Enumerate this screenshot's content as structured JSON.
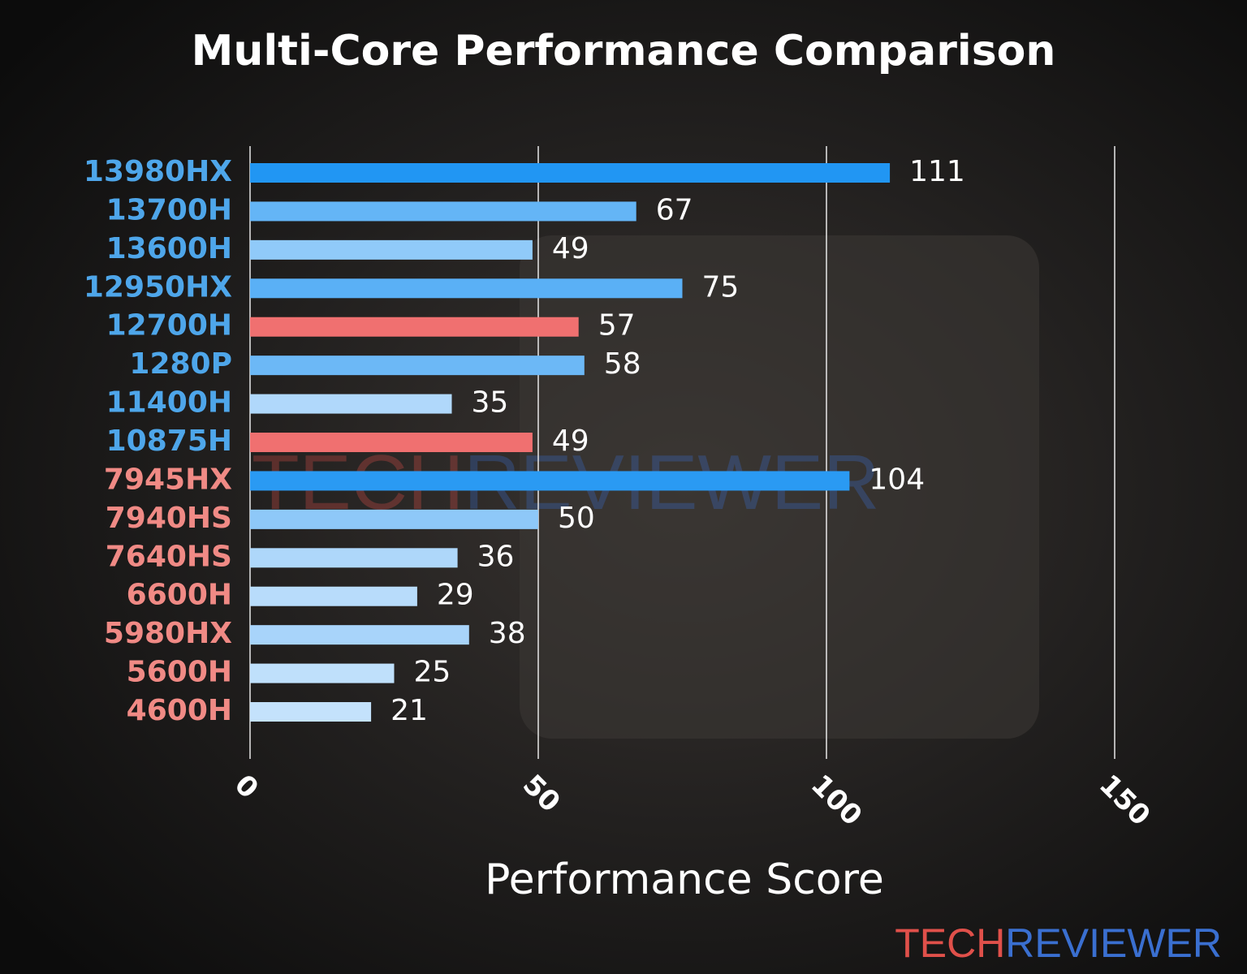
{
  "chart_data": {
    "type": "bar",
    "orientation": "horizontal",
    "title": "Multi-Core Performance Comparison",
    "x_label": "Performance Score",
    "watermark": [
      "TECH",
      "REVIEWER"
    ],
    "watermark_colors": [
      "#e0504a",
      "#3a6fd0"
    ],
    "categories": [
      "13980HX",
      "13700H",
      "13600H",
      "12950HX",
      "12700H",
      "1280P",
      "11400H",
      "10875H",
      "7945HX",
      "7940HS",
      "7640HS",
      "6600H",
      "5980HX",
      "5600H",
      "4600H"
    ],
    "category_colors": [
      "#4ea6ea",
      "#4ea6ea",
      "#4ea6ea",
      "#4ea6ea",
      "#4ea6ea",
      "#4ea6ea",
      "#4ea6ea",
      "#4ea6ea",
      "#f08a85",
      "#f08a85",
      "#f08a85",
      "#f08a85",
      "#f08a85",
      "#f08a85",
      "#f08a85"
    ],
    "values": [
      111,
      67,
      49,
      75,
      57,
      58,
      35,
      49,
      104,
      50,
      36,
      29,
      38,
      25,
      21
    ],
    "colors": [
      "#2196f3",
      "#64b5f6",
      "#90caf9",
      "#5ab0f6",
      "#f07070",
      "#6cb8f6",
      "#b0d8fb",
      "#f07070",
      "#2a9af3",
      "#8ec8f8",
      "#aed7fa",
      "#b8dcfb",
      "#a8d4fa",
      "#bfe0fb",
      "#c4e2fc"
    ],
    "xlim": [
      0,
      150
    ],
    "xticks": [
      0,
      50,
      100,
      150
    ],
    "grid": true
  }
}
